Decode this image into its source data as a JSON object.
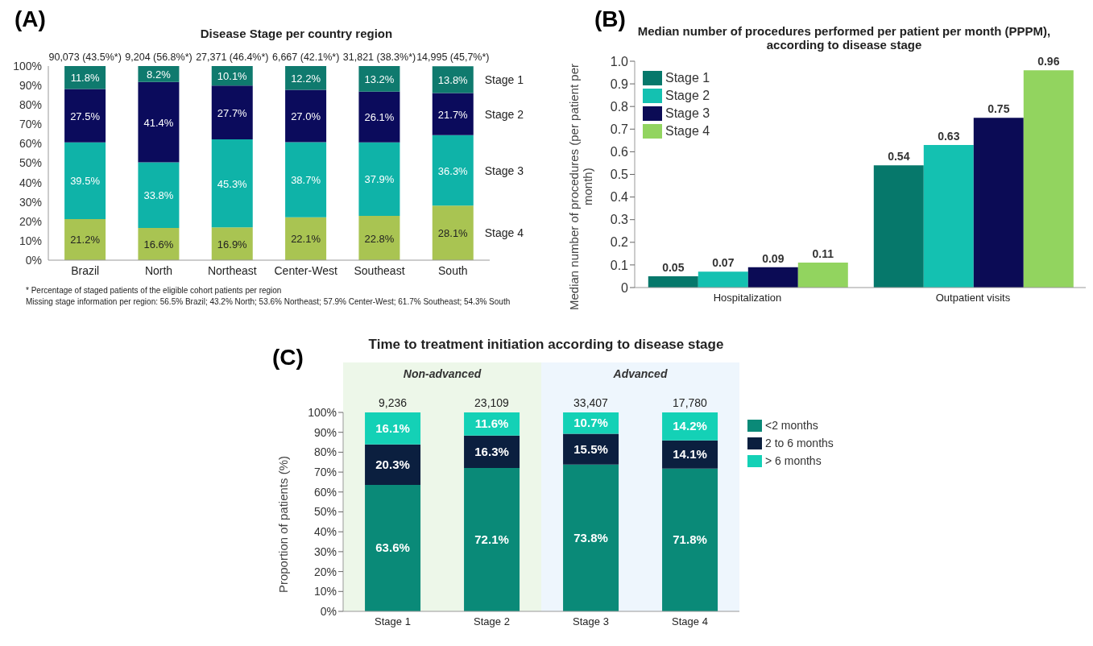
{
  "chart_data": [
    {
      "type": "bar",
      "title": "Disease Stage per country region",
      "stacked": true,
      "categories": [
        "Brazil",
        "North",
        "Northeast",
        "Center-West",
        "Southeast",
        "South"
      ],
      "series": [
        {
          "name": "Stage 4",
          "color": "#a9c452",
          "values": [
            21.2,
            16.6,
            16.9,
            22.1,
            22.8,
            28.1
          ],
          "value_labels": [
            "21.2%",
            "16.6%",
            "16.9%",
            "22.1%",
            "22.8%",
            "28.1%"
          ]
        },
        {
          "name": "Stage 3",
          "color": "#0fb3a8",
          "values": [
            39.5,
            33.8,
            45.3,
            38.7,
            37.9,
            36.3
          ],
          "value_labels": [
            "39.5%",
            "33.8%",
            "45.3%",
            "38.7%",
            "37.9%",
            "36.3%"
          ]
        },
        {
          "name": "Stage 2",
          "color": "#0b0b5c",
          "values": [
            27.5,
            41.4,
            27.7,
            27.0,
            26.1,
            21.7
          ],
          "value_labels": [
            "27.5%",
            "41.4%",
            "27.7%",
            "27.0%",
            "26.1%",
            "21.7%"
          ]
        },
        {
          "name": "Stage 1",
          "color": "#0f7a6e",
          "values": [
            11.8,
            8.2,
            10.1,
            12.2,
            13.2,
            13.8
          ],
          "value_labels": [
            "11.8%",
            "8.2%",
            "10.1%",
            "12.2%",
            "13.2%",
            "13.8%"
          ]
        }
      ],
      "ylim": [
        0,
        100
      ],
      "yticks": [
        {
          "value": 0,
          "label": "0%"
        },
        {
          "value": 10,
          "label": "10%"
        },
        {
          "value": 20,
          "label": "20%"
        },
        {
          "value": 30,
          "label": "30%"
        },
        {
          "value": 40,
          "label": "40%"
        },
        {
          "value": 50,
          "label": "50%"
        },
        {
          "value": 60,
          "label": "60%"
        },
        {
          "value": 70,
          "label": "70%"
        },
        {
          "value": 80,
          "label": "80%"
        },
        {
          "value": 90,
          "label": "90%"
        },
        {
          "value": 100,
          "label": "100%"
        }
      ],
      "annotations": [
        "(A)",
        "* Percentage of staged patients of the eligible cohort patients per region",
        "Missing stage information per region: 56.5% Brazil; 43.2% North; 53.6% Northeast; 57.9% Center-West; 61.7% Southeast; 54.3% South",
        {
          "text": "90,073 (43.5%*)",
          "x": "Brazil",
          "y": 100
        },
        {
          "text": "9,204 (56.8%*)",
          "x": "North",
          "y": 100
        },
        {
          "text": "27,371 (46.4%*)",
          "x": "Northeast",
          "y": 100
        },
        {
          "text": "6,667 (42.1%*)",
          "x": "Center-West",
          "y": 100
        },
        {
          "text": "31,821 (38.3%*)",
          "x": "Southeast",
          "y": 100
        },
        {
          "text": "14,995 (45,7%*)",
          "x": "South",
          "y": 100
        }
      ]
    },
    {
      "type": "bar",
      "title": "Median number of procedures performed per patient per month (PPPM), according to disease stage",
      "ylabel": "Median number of procedures (per patient per month)",
      "categories": [
        "Hospitalization",
        "Outpatient visits"
      ],
      "series": [
        {
          "name": "Stage 1",
          "color": "#06786b",
          "values": [
            0.05,
            0.54
          ]
        },
        {
          "name": "Stage 2",
          "color": "#14c1b1",
          "values": [
            0.07,
            0.63
          ]
        },
        {
          "name": "Stage 3",
          "color": "#0b0b55",
          "values": [
            0.09,
            0.75
          ]
        },
        {
          "name": "Stage 4",
          "color": "#92d45f",
          "values": [
            0.11,
            0.96
          ]
        }
      ],
      "data_labels": true,
      "legend": "top left",
      "ylim": [
        0,
        1
      ],
      "yticks": [
        0,
        0.1,
        0.2,
        0.3,
        0.4,
        0.5,
        0.6,
        0.7,
        0.8,
        0.9,
        {
          "value": 1,
          "label": "1.0"
        }
      ],
      "annotations": [
        "(B)"
      ]
    },
    {
      "type": "bar",
      "title": "Time to treatment initiation according to disease stage",
      "ylabel": "Proportion of patients (%)",
      "stacked": true,
      "categories": [
        "Stage 1",
        "Stage 2",
        "Stage 3",
        "Stage 4"
      ],
      "series": [
        {
          "name": "<2 months",
          "color": "#0a8a78",
          "values": [
            63.6,
            72.1,
            73.8,
            71.8
          ],
          "value_labels": [
            "63.6%",
            "72.1%",
            "73.8%",
            "71.8%"
          ]
        },
        {
          "name": "2 to 6 months",
          "color": "#0b1f3f",
          "values": [
            20.3,
            16.3,
            15.5,
            14.1
          ],
          "value_labels": [
            "20.3%",
            "16.3%",
            "15.5%",
            "14.1%"
          ]
        },
        {
          "name": "> 6 months",
          "color": "#14d1b6",
          "values": [
            16.1,
            11.6,
            10.7,
            14.2
          ],
          "value_labels": [
            "16.1%",
            "11.6%",
            "10.7%",
            "14.2%"
          ]
        }
      ],
      "legend": "right",
      "bands": [
        {
          "axis": "x",
          "from": "Stage 1",
          "to": "Stage 2",
          "label": "Non-advanced",
          "color": "#edf7e9"
        },
        {
          "axis": "x",
          "from": "Stage 3",
          "to": "Stage 4",
          "label": "Advanced",
          "color": "#eef6fd"
        }
      ],
      "ylim": [
        0,
        100
      ],
      "yticks": [
        {
          "value": 0,
          "label": "0%"
        },
        {
          "value": 10,
          "label": "10%"
        },
        {
          "value": 20,
          "label": "20%"
        },
        {
          "value": 30,
          "label": "30%"
        },
        {
          "value": 40,
          "label": "40%"
        },
        {
          "value": 50,
          "label": "50%"
        },
        {
          "value": 60,
          "label": "60%"
        },
        {
          "value": 70,
          "label": "70%"
        },
        {
          "value": 80,
          "label": "80%"
        },
        {
          "value": 90,
          "label": "90%"
        },
        {
          "value": 100,
          "label": "100%"
        }
      ],
      "annotations": [
        "(C)",
        {
          "text": "9,236",
          "x": "Stage 1",
          "y": 100
        },
        {
          "text": "23,109",
          "x": "Stage 2",
          "y": 100
        },
        {
          "text": "33,407",
          "x": "Stage 3",
          "y": 100
        },
        {
          "text": "17,780",
          "x": "Stage 4",
          "y": 100
        }
      ]
    }
  ]
}
